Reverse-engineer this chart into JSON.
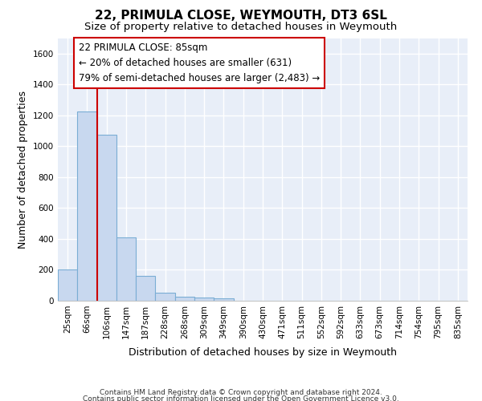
{
  "title": "22, PRIMULA CLOSE, WEYMOUTH, DT3 6SL",
  "subtitle": "Size of property relative to detached houses in Weymouth",
  "xlabel": "Distribution of detached houses by size in Weymouth",
  "ylabel": "Number of detached properties",
  "footer_line1": "Contains HM Land Registry data © Crown copyright and database right 2024.",
  "footer_line2": "Contains public sector information licensed under the Open Government Licence v3.0.",
  "bar_labels": [
    "25sqm",
    "66sqm",
    "106sqm",
    "147sqm",
    "187sqm",
    "228sqm",
    "268sqm",
    "309sqm",
    "349sqm",
    "390sqm",
    "430sqm",
    "471sqm",
    "511sqm",
    "552sqm",
    "592sqm",
    "633sqm",
    "673sqm",
    "714sqm",
    "754sqm",
    "795sqm",
    "835sqm"
  ],
  "bar_values": [
    205,
    1225,
    1075,
    410,
    160,
    50,
    27,
    20,
    15,
    0,
    0,
    0,
    0,
    0,
    0,
    0,
    0,
    0,
    0,
    0,
    0
  ],
  "bar_color": "#c8d8ef",
  "bar_edgecolor": "#7aadd4",
  "vline_color": "#cc0000",
  "annotation_line1": "22 PRIMULA CLOSE: 85sqm",
  "annotation_line2": "← 20% of detached houses are smaller (631)",
  "annotation_line3": "79% of semi-detached houses are larger (2,483) →",
  "annotation_box_edgecolor": "#cc0000",
  "ylim": [
    0,
    1700
  ],
  "yticks": [
    0,
    200,
    400,
    600,
    800,
    1000,
    1200,
    1400,
    1600
  ],
  "bg_color": "#e8eef8",
  "grid_color": "#ffffff",
  "fig_bg_color": "#ffffff",
  "title_fontsize": 11,
  "subtitle_fontsize": 9.5,
  "axis_label_fontsize": 9,
  "tick_fontsize": 7.5,
  "footer_fontsize": 6.5
}
